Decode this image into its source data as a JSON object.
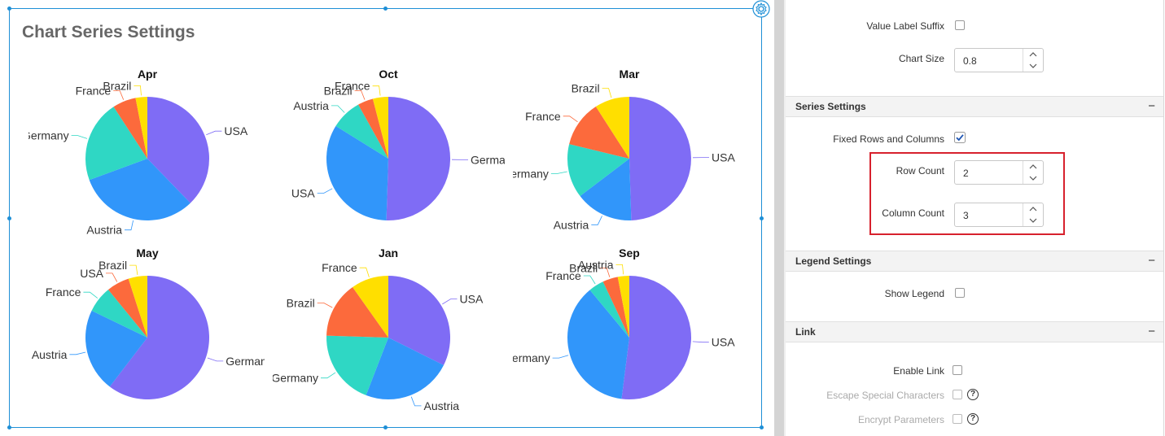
{
  "canvas": {
    "title": "Chart Series Settings"
  },
  "chart_data": [
    {
      "type": "pie",
      "title": "Apr",
      "categories": [
        "USA",
        "Austria",
        "Germany",
        "France",
        "Brazil"
      ],
      "values": [
        37,
        31,
        21,
        6,
        3
      ]
    },
    {
      "type": "pie",
      "title": "Oct",
      "categories": [
        "Germany",
        "USA",
        "Austria",
        "Brazil",
        "France"
      ],
      "values": [
        50,
        33,
        8,
        4,
        4
      ]
    },
    {
      "type": "pie",
      "title": "Mar",
      "categories": [
        "USA",
        "Austria",
        "Germany",
        "France",
        "Brazil"
      ],
      "values": [
        49,
        15,
        14,
        12,
        9
      ]
    },
    {
      "type": "pie",
      "title": "May",
      "categories": [
        "Germany",
        "Austria",
        "France",
        "USA",
        "Brazil"
      ],
      "values": [
        61,
        22,
        7,
        6,
        5
      ]
    },
    {
      "type": "pie",
      "title": "Jan",
      "categories": [
        "USA",
        "Austria",
        "Germany",
        "Brazil",
        "France"
      ],
      "values": [
        33,
        24,
        20,
        15,
        10
      ]
    },
    {
      "type": "pie",
      "title": "Sep",
      "categories": [
        "USA",
        "Germany",
        "France",
        "Brazil",
        "Austria"
      ],
      "values": [
        52,
        37,
        4,
        4,
        3
      ]
    }
  ],
  "colors": {
    "purple": "#7f6cf5",
    "blue": "#3196fa",
    "teal": "#2fd7c4",
    "orange": "#fc6a3c",
    "yellow": "#ffdf00",
    "selection": "#1e8fd6",
    "highlight": "#d7212d"
  },
  "panel": {
    "value_label_suffix": "Value Label Suffix",
    "chart_size_label": "Chart Size",
    "chart_size_value": "0.8",
    "series_settings": "Series Settings",
    "fixed_rows_columns": "Fixed Rows and Columns",
    "row_count_label": "Row Count",
    "row_count_value": "2",
    "column_count_label": "Column Count",
    "column_count_value": "3",
    "legend_settings": "Legend Settings",
    "show_legend": "Show Legend",
    "link": "Link",
    "enable_link": "Enable Link",
    "escape_special_characters": "Escape Special Characters",
    "encrypt_parameters": "Encrypt Parameters",
    "collapse_symbol": "−",
    "help_symbol": "?"
  }
}
